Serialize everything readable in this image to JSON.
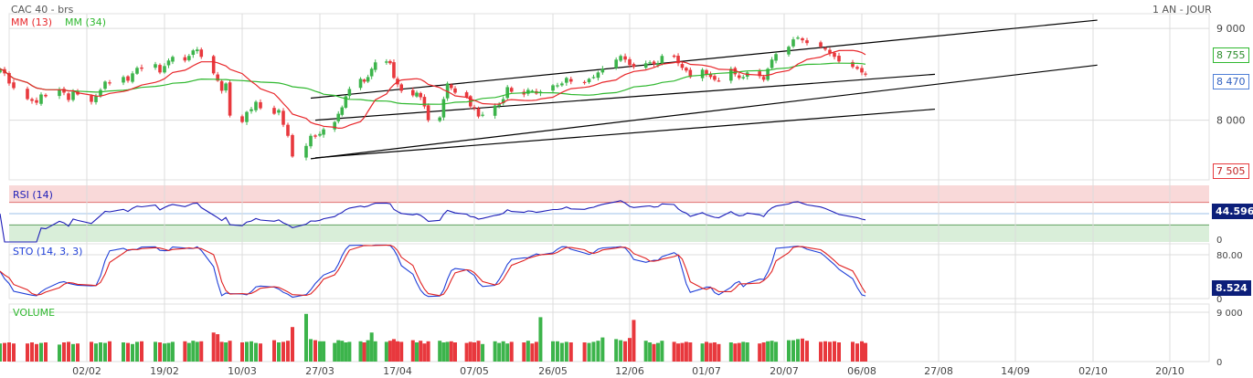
{
  "header": {
    "title": "CAC 40 - brs",
    "period": "1 AN - JOUR",
    "ma_short": "MM (13)",
    "ma_long": "MM (34)"
  },
  "colors": {
    "up": "#3cb44b",
    "down": "#e8383d",
    "ma_short": "#e8262a",
    "ma_long": "#2fb82f",
    "rsi_line": "#1d1db8",
    "overbought_zone": "#f9d9d9",
    "oversold_zone": "#d9eed9",
    "sto_k": "#1f3fd8",
    "sto_d": "#e02020",
    "channel": "#000000",
    "grid": "#dcdcdc"
  },
  "panels": {
    "rsi_label": "RSI (14)",
    "sto_label": "STO (14, 3, 3)",
    "volume_label": "VOLUME"
  },
  "axes": {
    "price_ticks": [
      "9 000",
      "8 000"
    ],
    "rsi_ticks": [
      "0"
    ],
    "sto_ticks": [
      "80.00",
      "0"
    ],
    "volume_ticks": [
      "9 000",
      "0"
    ],
    "x_ticks": [
      "02/02",
      "19/02",
      "10/03",
      "27/03",
      "17/04",
      "07/05",
      "26/05",
      "12/06",
      "01/07",
      "20/07",
      "06/08",
      "27/08",
      "14/09",
      "02/10",
      "20/10"
    ]
  },
  "price_tags": {
    "ma_short": "8 755",
    "ma_long": "8 470",
    "low": "7 505"
  },
  "indicator_tags": {
    "rsi": "44.596",
    "sto": "8.524"
  },
  "chart_data": {
    "type": "candlestick",
    "title": "CAC 40 - brs",
    "period": "1 AN - JOUR",
    "price_axis": {
      "ticks": [
        9000,
        8000
      ],
      "range": [
        7350,
        9160
      ]
    },
    "first_date": "2025-01-14",
    "candle_closes": [
      8560,
      8510,
      8400,
      8350,
      8230,
      8210,
      8190,
      8280,
      8260,
      8330,
      8300,
      8220,
      8310,
      8280,
      8200,
      8260,
      8330,
      8420,
      8410,
      8470,
      8430,
      8510,
      8570,
      8560,
      8610,
      8520,
      8590,
      8650,
      8690,
      8650,
      8700,
      8760,
      8770,
      8690,
      8510,
      8430,
      8320,
      8400,
      8050,
      7980,
      8090,
      8120,
      8200,
      8130,
      8070,
      8110,
      7950,
      7830,
      7605,
      7720,
      7830,
      7820,
      7850,
      7900,
      7980,
      8070,
      8140,
      8260,
      8340,
      8450,
      8420,
      8470,
      8560,
      8630,
      8640,
      8620,
      8460,
      8390,
      8320,
      8270,
      8300,
      8250,
      8150,
      8000,
      8030,
      8230,
      8400,
      8350,
      8300,
      8250,
      8150,
      8130,
      8040,
      8060,
      8160,
      8180,
      8230,
      8360,
      8310,
      8280,
      8330,
      8320,
      8290,
      8310,
      8380,
      8380,
      8400,
      8460,
      8420,
      8410,
      8450,
      8470,
      8520,
      8560,
      8660,
      8700,
      8660,
      8600,
      8580,
      8620,
      8630,
      8610,
      8620,
      8700,
      8690,
      8620,
      8570,
      8540,
      8470,
      8550,
      8500,
      8470,
      8440,
      8430,
      8560,
      8500,
      8460,
      8470,
      8520,
      8480,
      8440,
      8560,
      8660,
      8720,
      8800,
      8880,
      8900,
      8870,
      8840,
      8800,
      8770,
      8730,
      8690,
      8640,
      8580,
      8560,
      8520,
      8500
    ],
    "ma_short_last": 8755,
    "ma_long_last": 8470,
    "price_low": 7505,
    "channel_lines": [
      {
        "from": {
          "date": "2025-03-26",
          "value": 8000
        },
        "to": {
          "date": "2025-08-26",
          "value": 8500
        }
      },
      {
        "from": {
          "date": "2025-03-26",
          "value": 7590
        },
        "to": {
          "date": "2025-08-26",
          "value": 8120
        }
      },
      {
        "from": {
          "date": "2025-03-25",
          "value": 7580
        },
        "to": {
          "date": "2025-10-03",
          "value": 8600
        }
      },
      {
        "from": {
          "date": "2025-03-25",
          "value": 8240
        },
        "to": {
          "date": "2025-10-03",
          "value": 9090
        }
      }
    ],
    "rsi": {
      "last": 44.596,
      "overbought": 70,
      "oversold": 30,
      "mid": 50
    },
    "stochastic": {
      "k_last": 8.524,
      "ticks": [
        80,
        0
      ]
    },
    "volume": {
      "ticks": [
        9000,
        0
      ],
      "max": 10500,
      "values": [
        3300,
        3400,
        3500,
        3300,
        3300,
        3500,
        3200,
        3400,
        3500,
        3100,
        3500,
        3600,
        3200,
        3300,
        3600,
        3300,
        3500,
        3400,
        3700,
        3500,
        3400,
        3200,
        3600,
        3700,
        3600,
        3500,
        3300,
        3400,
        3600,
        3700,
        3400,
        3800,
        3600,
        3700,
        5300,
        5000,
        3600,
        3500,
        3800,
        3500,
        3600,
        3700,
        3400,
        3300,
        3900,
        3500,
        3600,
        3800,
        6300,
        8700,
        4100,
        3900,
        3700,
        3700,
        3400,
        3900,
        3800,
        3500,
        3600,
        3700,
        3500,
        3900,
        5300,
        3700,
        3600,
        3800,
        4100,
        3700,
        3600,
        3900,
        3500,
        3800,
        3300,
        3700,
        3800,
        3500,
        3600,
        3700,
        3500,
        3400,
        3600,
        3500,
        3800,
        3200,
        3700,
        3400,
        3700,
        3300,
        3600,
        3500,
        3800,
        3300,
        3600,
        8100,
        3700,
        3700,
        3400,
        3600,
        3500,
        3500,
        3400,
        3600,
        3800,
        4400,
        4100,
        3900,
        3700,
        4300,
        7600,
        3800,
        3500,
        3200,
        3400,
        3800,
        3600,
        3300,
        3400,
        3600,
        3500,
        3300,
        3600,
        3400,
        3500,
        3200,
        3500,
        3300,
        3400,
        3600,
        3500,
        3300,
        3500,
        3700,
        3800,
        3600,
        3900,
        3900,
        4100,
        4200,
        3800,
        3600,
        3700,
        3600,
        3700,
        3500,
        3600,
        3300,
        3700,
        3400
      ]
    }
  }
}
